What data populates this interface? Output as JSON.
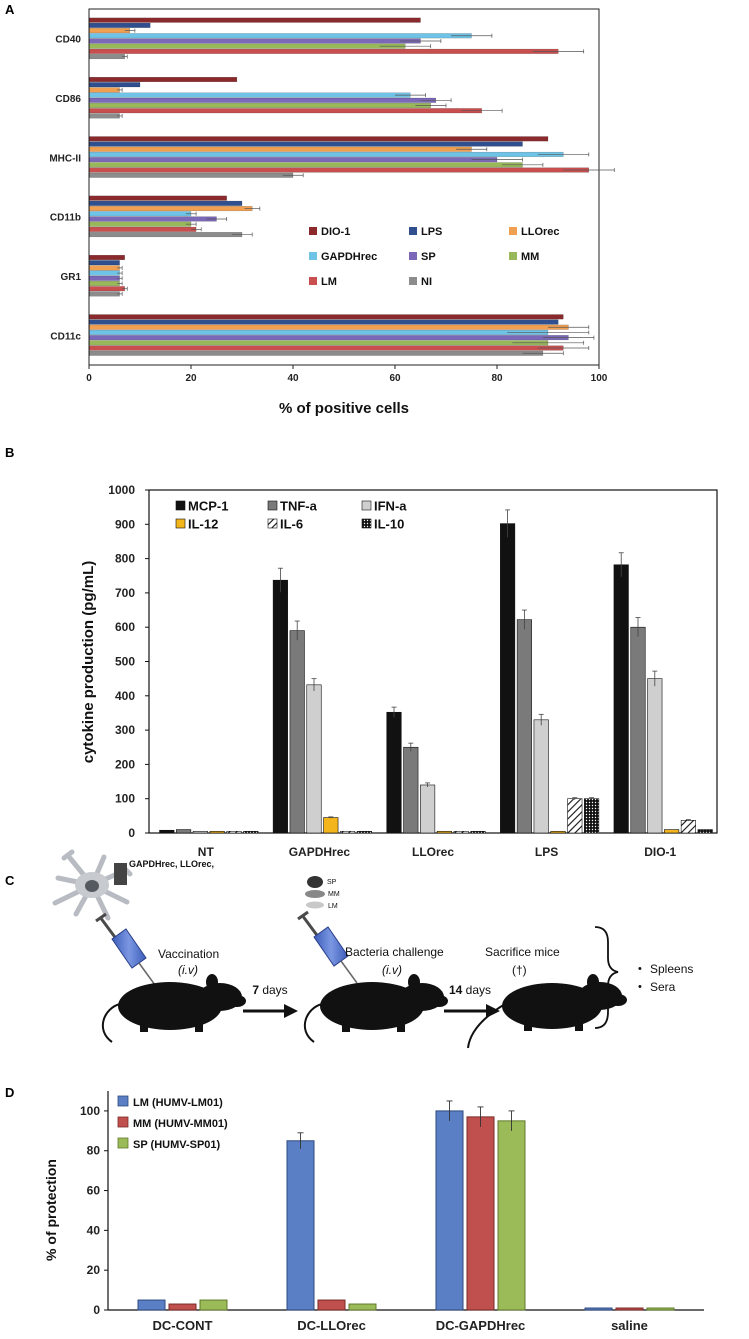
{
  "panels": {
    "a": {
      "letter": "A"
    },
    "b": {
      "letter": "B"
    },
    "c": {
      "letter": "C"
    },
    "d": {
      "letter": "D"
    }
  },
  "schematic": {
    "antigens": "GAPDHrec, LLOrec,",
    "bacteria": [
      "SP",
      "MM",
      "LM"
    ],
    "step1_label": "Vaccination",
    "step1_route": "(i.v)",
    "step2_label": "Bacteria challenge",
    "step2_route": "(i.v)",
    "step3_label": "Sacrifice mice",
    "step3_mark": "(†)",
    "interval1_num": "7",
    "interval1_unit": " days",
    "interval2_num": "14",
    "interval2_unit": " days",
    "outcomes": [
      "Spleens",
      "Sera"
    ],
    "bullet": "•"
  },
  "colors": {
    "DIO-1": "#8b2a2d",
    "LPS": "#2f4f8f",
    "LLOrec": "#f0a050",
    "GAPDHrec": "#6ec3e6",
    "SP": "#7b68b8",
    "MM": "#98b85a",
    "LM": "#c94f4f",
    "NI": "#8c8c8c",
    "d_LM": "#5b7fc4",
    "d_MM": "#c0504d",
    "d_SP": "#9bbb59"
  },
  "chart_data": [
    {
      "type": "bar",
      "orientation": "horizontal",
      "xlabel": "% of positive cells",
      "xlim": [
        0,
        100
      ],
      "xticks": [
        0,
        20,
        40,
        60,
        80,
        100
      ],
      "categories": [
        "CD40",
        "CD86",
        "MHC-II",
        "CD11b",
        "GR1",
        "CD11c"
      ],
      "series": [
        {
          "name": "DIO-1",
          "values": [
            65,
            29,
            90,
            27,
            7,
            93
          ],
          "errors": [
            0,
            0,
            0,
            0,
            0,
            0
          ]
        },
        {
          "name": "LPS",
          "values": [
            12,
            10,
            85,
            30,
            6,
            92
          ],
          "errors": [
            0,
            0,
            0,
            0,
            0,
            0
          ]
        },
        {
          "name": "LLOrec",
          "values": [
            8,
            6,
            75,
            32,
            6,
            94
          ],
          "errors": [
            1,
            0.5,
            3,
            1.5,
            0.5,
            4
          ]
        },
        {
          "name": "GAPDHrec",
          "values": [
            75,
            63,
            93,
            20,
            6,
            90
          ],
          "errors": [
            4,
            3,
            5,
            1,
            0.5,
            8
          ]
        },
        {
          "name": "SP",
          "values": [
            65,
            68,
            80,
            25,
            6,
            94
          ],
          "errors": [
            4,
            3,
            5,
            2,
            0.5,
            5
          ]
        },
        {
          "name": "MM",
          "values": [
            62,
            67,
            85,
            20,
            6,
            90
          ],
          "errors": [
            5,
            3,
            4,
            1,
            0.5,
            7
          ]
        },
        {
          "name": "LM",
          "values": [
            92,
            77,
            98,
            21,
            7,
            93
          ],
          "errors": [
            5,
            4,
            5,
            1,
            0.5,
            5
          ]
        },
        {
          "name": "NI",
          "values": [
            7,
            6,
            40,
            30,
            6,
            89
          ],
          "errors": [
            0.5,
            0.5,
            2,
            2,
            0.5,
            4
          ]
        }
      ],
      "legend_position": "lower-right inside plot"
    },
    {
      "type": "bar",
      "ylabel": "cytokine production (pg/mL)",
      "ylim": [
        0,
        1000
      ],
      "yticks": [
        0,
        100,
        200,
        300,
        400,
        500,
        600,
        700,
        800,
        900,
        1000
      ],
      "categories": [
        "NT",
        "GAPDHrec",
        "LLOrec",
        "LPS",
        "DIO-1"
      ],
      "series": [
        {
          "name": "MCP-1",
          "values": [
            8,
            737,
            352,
            902,
            782
          ],
          "errors": [
            0,
            35,
            15,
            40,
            35
          ]
        },
        {
          "name": "TNF-a",
          "values": [
            10,
            590,
            250,
            622,
            600
          ],
          "errors": [
            0,
            28,
            12,
            28,
            28
          ]
        },
        {
          "name": "IFN-a",
          "values": [
            5,
            432,
            140,
            330,
            450
          ],
          "errors": [
            0,
            18,
            6,
            16,
            22
          ]
        },
        {
          "name": "IL-12",
          "values": [
            5,
            45,
            5,
            5,
            10
          ],
          "errors": [
            0,
            2,
            0,
            0,
            0
          ]
        },
        {
          "name": "IL-6",
          "values": [
            5,
            5,
            5,
            100,
            37
          ],
          "errors": [
            0,
            0,
            0,
            3,
            2
          ]
        },
        {
          "name": "IL-10",
          "values": [
            5,
            5,
            5,
            100,
            10
          ],
          "errors": [
            0,
            0,
            0,
            3,
            0
          ]
        }
      ],
      "legend_position": "top-left inside plot"
    },
    {
      "type": "bar",
      "ylabel": "% of protection",
      "ylim": [
        0,
        110
      ],
      "yticks": [
        0,
        20,
        40,
        60,
        80,
        100
      ],
      "categories": [
        "DC-CONT",
        "DC-LLOrec",
        "DC-GAPDHrec",
        "saline"
      ],
      "series": [
        {
          "name": "LM (HUMV-LM01)",
          "values": [
            5,
            85,
            100,
            1
          ],
          "errors": [
            0,
            4,
            5,
            0
          ]
        },
        {
          "name": "MM (HUMV-MM01)",
          "values": [
            3,
            5,
            97,
            1
          ],
          "errors": [
            0,
            0,
            5,
            0
          ]
        },
        {
          "name": "SP (HUMV-SP01)",
          "values": [
            5,
            3,
            95,
            1
          ],
          "errors": [
            0,
            0,
            5,
            0
          ]
        }
      ],
      "legend_position": "top-left inside plot"
    }
  ]
}
